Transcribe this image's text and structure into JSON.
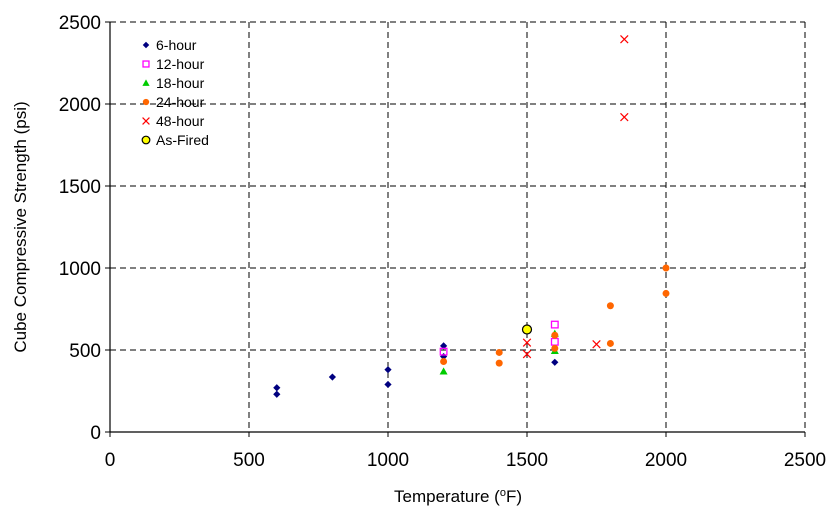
{
  "chart_data": {
    "type": "scatter",
    "xlabel": {
      "prefix": "Temperature (",
      "sup": "o",
      "suffix": "F)"
    },
    "ylabel": "Cube Compressive Strength (psi)",
    "xlim": [
      0,
      2500
    ],
    "ylim": [
      0,
      2500
    ],
    "xticks": [
      "0",
      "500",
      "1000",
      "1500",
      "2000",
      "2500"
    ],
    "yticks": [
      "0",
      "500",
      "1000",
      "1500",
      "2000",
      "2500"
    ],
    "grid": "dashed",
    "legend_position": "top-left",
    "series": [
      {
        "name": "6-hour",
        "marker": "diamond",
        "color": "#000080",
        "points": [
          [
            600,
            270
          ],
          [
            600,
            230
          ],
          [
            800,
            335
          ],
          [
            1000,
            380
          ],
          [
            1000,
            290
          ],
          [
            1200,
            525
          ],
          [
            1200,
            460
          ],
          [
            1600,
            425
          ]
        ]
      },
      {
        "name": "12-hour",
        "marker": "square-open",
        "color": "#ff00ff",
        "points": [
          [
            1200,
            490
          ],
          [
            1600,
            655
          ],
          [
            1600,
            550
          ]
        ]
      },
      {
        "name": "18-hour",
        "marker": "triangle",
        "color": "#00cc00",
        "points": [
          [
            1200,
            370
          ],
          [
            1600,
            600
          ],
          [
            1600,
            495
          ]
        ]
      },
      {
        "name": "24-hour",
        "marker": "circle",
        "color": "#ff6600",
        "points": [
          [
            1200,
            430
          ],
          [
            1400,
            485
          ],
          [
            1400,
            420
          ],
          [
            1600,
            590
          ],
          [
            1600,
            510
          ],
          [
            1800,
            770
          ],
          [
            1800,
            540
          ],
          [
            2000,
            1000
          ],
          [
            2000,
            845
          ]
        ]
      },
      {
        "name": "48-hour",
        "marker": "x",
        "color": "#ff0000",
        "points": [
          [
            1500,
            545
          ],
          [
            1500,
            475
          ],
          [
            1750,
            535
          ],
          [
            1850,
            2395
          ],
          [
            1850,
            1920
          ]
        ]
      },
      {
        "name": "As-Fired",
        "marker": "circle-outline",
        "color": "#ffff00",
        "points": [
          [
            1500,
            625
          ]
        ]
      }
    ]
  }
}
